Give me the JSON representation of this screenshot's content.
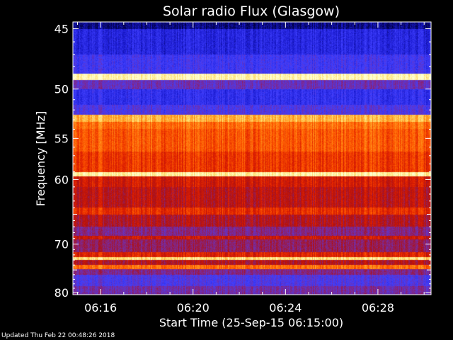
{
  "chart_data": {
    "type": "heatmap",
    "title": "Solar radio Flux (Glasgow)",
    "xlabel": "Start Time (25-Sep-15 06:15:00)",
    "ylabel": "Frequency [MHz]",
    "x_ticks": [
      {
        "label": "06:16",
        "minutes": 1
      },
      {
        "label": "06:20",
        "minutes": 5
      },
      {
        "label": "06:24",
        "minutes": 9
      },
      {
        "label": "06:28",
        "minutes": 13
      }
    ],
    "xlim_minutes": [
      -0.2,
      15.3
    ],
    "y_ticks": [
      45,
      50,
      55,
      60,
      70,
      80
    ],
    "ylim_mhz": [
      44.5,
      80.5
    ],
    "y_scale": "reciprocal (frequency decreases upward... higher frequencies at bottom)",
    "colormap": [
      "#000044",
      "#1a1ad0",
      "#4040ff",
      "#7a2a9a",
      "#b01010",
      "#e02000",
      "#ff5a00",
      "#ff9a20",
      "#ffe070",
      "#ffffd0"
    ],
    "bands": [
      {
        "from_mhz": 44.5,
        "to_mhz": 45.0,
        "intensity": 0.05
      },
      {
        "from_mhz": 45.0,
        "to_mhz": 47.0,
        "intensity": 0.15
      },
      {
        "from_mhz": 47.0,
        "to_mhz": 48.6,
        "intensity": 0.22
      },
      {
        "from_mhz": 48.6,
        "to_mhz": 49.2,
        "intensity": 0.97
      },
      {
        "from_mhz": 49.2,
        "to_mhz": 50.0,
        "intensity": 0.3
      },
      {
        "from_mhz": 50.0,
        "to_mhz": 51.5,
        "intensity": 0.18
      },
      {
        "from_mhz": 51.5,
        "to_mhz": 52.5,
        "intensity": 0.25
      },
      {
        "from_mhz": 52.5,
        "to_mhz": 53.2,
        "intensity": 0.82
      },
      {
        "from_mhz": 53.2,
        "to_mhz": 54.0,
        "intensity": 0.7
      },
      {
        "from_mhz": 54.0,
        "to_mhz": 56.5,
        "intensity": 0.66
      },
      {
        "from_mhz": 56.5,
        "to_mhz": 59.0,
        "intensity": 0.6
      },
      {
        "from_mhz": 59.0,
        "to_mhz": 59.6,
        "intensity": 0.95
      },
      {
        "from_mhz": 59.6,
        "to_mhz": 61.0,
        "intensity": 0.52
      },
      {
        "from_mhz": 61.0,
        "to_mhz": 64.0,
        "intensity": 0.47
      },
      {
        "from_mhz": 64.0,
        "to_mhz": 65.0,
        "intensity": 0.58
      },
      {
        "from_mhz": 65.0,
        "to_mhz": 67.0,
        "intensity": 0.45
      },
      {
        "from_mhz": 67.0,
        "to_mhz": 68.5,
        "intensity": 0.35
      },
      {
        "from_mhz": 68.5,
        "to_mhz": 69.2,
        "intensity": 0.5
      },
      {
        "from_mhz": 69.2,
        "to_mhz": 71.5,
        "intensity": 0.38
      },
      {
        "from_mhz": 71.5,
        "to_mhz": 72.5,
        "intensity": 0.55
      },
      {
        "from_mhz": 72.5,
        "to_mhz": 73.0,
        "intensity": 0.9
      },
      {
        "from_mhz": 73.0,
        "to_mhz": 74.0,
        "intensity": 0.45
      },
      {
        "from_mhz": 74.0,
        "to_mhz": 74.8,
        "intensity": 0.7
      },
      {
        "from_mhz": 74.8,
        "to_mhz": 76.0,
        "intensity": 0.35
      },
      {
        "from_mhz": 76.0,
        "to_mhz": 78.5,
        "intensity": 0.25
      },
      {
        "from_mhz": 78.5,
        "to_mhz": 80.5,
        "intensity": 0.32
      }
    ]
  },
  "footer": {
    "updated": "Updated Thu Feb 22 00:48:26 2018"
  }
}
